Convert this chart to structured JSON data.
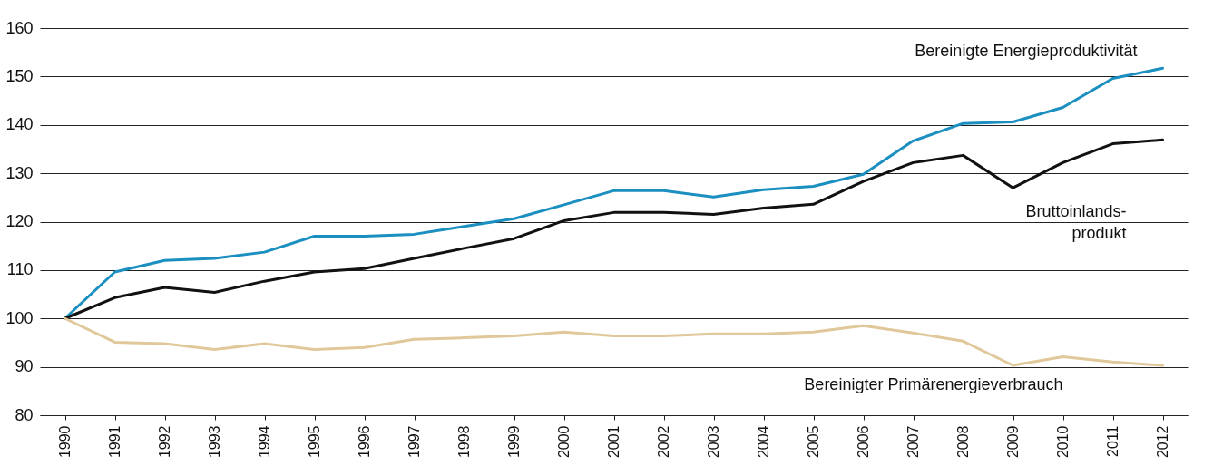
{
  "chart_data": {
    "type": "line",
    "categories": [
      "1990",
      "1991",
      "1992",
      "1993",
      "1994",
      "1995",
      "1996",
      "1997",
      "1998",
      "1999",
      "2000",
      "2001",
      "2002",
      "2003",
      "2004",
      "2005",
      "2006",
      "2007",
      "2008",
      "2009",
      "2010",
      "2011",
      "2012"
    ],
    "series": [
      {
        "name": "Bereinigte Energieproduktivität",
        "color": "#1a8fc0",
        "values": [
          100,
          109.6,
          112,
          112.4,
          113.7,
          117,
          117,
          117.4,
          119,
          120.6,
          123.5,
          126.4,
          126.4,
          125.1,
          126.6,
          127.3,
          129.8,
          136.7,
          140.3,
          140.6,
          143.6,
          149.6,
          151.7
        ]
      },
      {
        "name": "Bruttoinlands-\nprodukt",
        "color": "#111111",
        "values": [
          100,
          104.3,
          106.4,
          105.4,
          107.7,
          109.6,
          110.3,
          112.4,
          114.5,
          116.5,
          120.2,
          121.9,
          121.9,
          121.5,
          122.8,
          123.6,
          128.3,
          132.2,
          133.7,
          127,
          132.2,
          136.1,
          136.9
        ]
      },
      {
        "name": "Bereinigter Primärenergieverbrauch",
        "color": "#e0c89a",
        "values": [
          100,
          95.1,
          94.8,
          93.6,
          94.8,
          93.6,
          94,
          95.7,
          96,
          96.4,
          97.2,
          96.4,
          96.4,
          96.8,
          96.8,
          97.2,
          98.5,
          97,
          95.3,
          90.3,
          92.1,
          91,
          90.3
        ]
      }
    ],
    "ylim": [
      80,
      160
    ],
    "yticks": [
      80,
      90,
      100,
      110,
      120,
      130,
      140,
      150,
      160
    ],
    "grid": "y",
    "legend": false,
    "marker": "none",
    "line_style": "solid"
  }
}
